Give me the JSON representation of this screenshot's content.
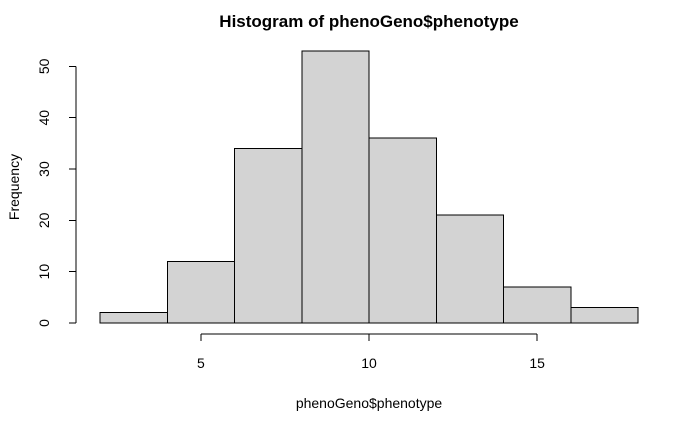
{
  "chart_data": {
    "type": "bar",
    "title": "Histogram of phenoGeno$phenotype",
    "xlabel": "phenoGeno$phenotype",
    "ylabel": "Frequency",
    "bins": [
      {
        "x0": 2,
        "x1": 4,
        "count": 2
      },
      {
        "x0": 4,
        "x1": 6,
        "count": 12
      },
      {
        "x0": 6,
        "x1": 8,
        "count": 34
      },
      {
        "x0": 8,
        "x1": 10,
        "count": 53
      },
      {
        "x0": 10,
        "x1": 12,
        "count": 36
      },
      {
        "x0": 12,
        "x1": 14,
        "count": 21
      },
      {
        "x0": 14,
        "x1": 16,
        "count": 7
      },
      {
        "x0": 16,
        "x1": 18,
        "count": 3
      }
    ],
    "x_ticks": [
      5,
      10,
      15
    ],
    "y_ticks": [
      0,
      10,
      20,
      30,
      40,
      50
    ],
    "xlim": [
      2,
      18
    ],
    "ylim": [
      0,
      53
    ],
    "grid": false,
    "legend": "none",
    "bar_fill": "#d3d3d3",
    "bar_stroke": "#000000"
  }
}
